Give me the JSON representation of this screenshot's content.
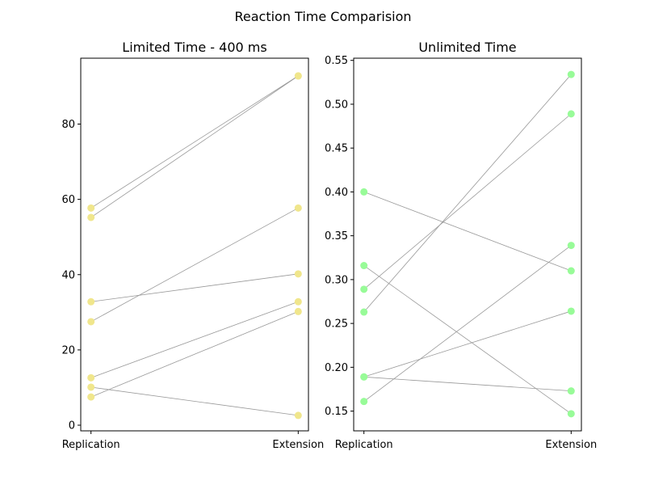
{
  "figure_title": "Reaction Time Comparision",
  "colors": {
    "left_points": "#f0e68c",
    "right_points": "#98fb98",
    "lines": "#999999",
    "axes": "#000000"
  },
  "chart_data": [
    {
      "type": "scatter",
      "title": "Limited Time - 400 ms",
      "categories": [
        "Replication",
        "Extension"
      ],
      "ylim": [
        -1.5,
        97.5
      ],
      "yticks": [
        0,
        20,
        40,
        60,
        80
      ],
      "ytick_labels": [
        "0",
        "20",
        "40",
        "60",
        "80"
      ],
      "grid": false,
      "point_color": "#f0e68c",
      "pairs": [
        {
          "replication": 57.7,
          "extension": 92.8
        },
        {
          "replication": 55.2,
          "extension": 92.8
        },
        {
          "replication": 32.8,
          "extension": 40.2
        },
        {
          "replication": 27.5,
          "extension": 57.7
        },
        {
          "replication": 12.6,
          "extension": 32.8
        },
        {
          "replication": 10.1,
          "extension": 2.6
        },
        {
          "replication": 7.5,
          "extension": 30.2
        }
      ]
    },
    {
      "type": "scatter",
      "title": "Unlimited Time",
      "categories": [
        "Replication",
        "Extension"
      ],
      "ylim": [
        0.1275,
        0.5525
      ],
      "yticks": [
        0.15,
        0.2,
        0.25,
        0.3,
        0.35,
        0.4,
        0.45,
        0.5,
        0.55
      ],
      "ytick_labels": [
        "0.15",
        "0.20",
        "0.25",
        "0.30",
        "0.35",
        "0.40",
        "0.45",
        "0.50",
        "0.55"
      ],
      "grid": false,
      "point_color": "#98fb98",
      "pairs": [
        {
          "replication": 0.4,
          "extension": 0.31
        },
        {
          "replication": 0.316,
          "extension": 0.147
        },
        {
          "replication": 0.289,
          "extension": 0.489
        },
        {
          "replication": 0.263,
          "extension": 0.534
        },
        {
          "replication": 0.189,
          "extension": 0.264
        },
        {
          "replication": 0.189,
          "extension": 0.173
        },
        {
          "replication": 0.161,
          "extension": 0.339
        }
      ]
    }
  ]
}
